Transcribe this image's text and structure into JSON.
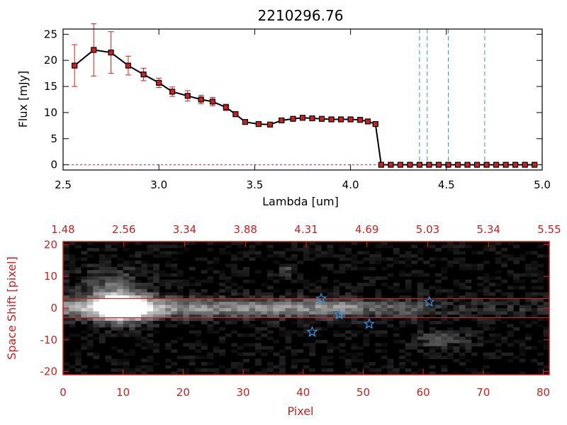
{
  "chart_data": [
    {
      "type": "line",
      "title": "2210296.76",
      "xlabel": "Lambda [um]",
      "ylabel": "Flux [mJy]",
      "xlim": [
        2.5,
        5.0
      ],
      "ylim": [
        -1,
        26
      ],
      "x_ticks": [
        "2.5",
        "3.0",
        "3.5",
        "4.0",
        "4.5",
        "5.0"
      ],
      "y_ticks": [
        "0",
        "5",
        "10",
        "15",
        "20",
        "25"
      ],
      "colors": {
        "line": "#000000",
        "marker": "#cc1f1f",
        "errorbar": "#d42020",
        "vline": "#3a8fd6",
        "zero": "#d42020"
      },
      "series": [
        {
          "x": [
            2.56,
            2.66,
            2.75,
            2.84,
            2.92,
            3.0,
            3.07,
            3.15,
            3.22,
            3.28,
            3.35,
            3.4,
            3.45,
            3.52,
            3.58,
            3.64,
            3.7,
            3.75,
            3.8,
            3.85,
            3.9,
            3.95,
            4.0,
            4.05,
            4.09,
            4.13,
            4.16,
            4.21,
            4.26,
            4.31,
            4.36,
            4.41,
            4.46,
            4.51,
            4.56,
            4.61,
            4.66,
            4.71,
            4.76,
            4.81,
            4.86,
            4.91,
            4.96
          ],
          "y": [
            19.0,
            22.0,
            21.5,
            19.0,
            17.3,
            15.7,
            14.0,
            13.2,
            12.5,
            12.1,
            11.0,
            9.7,
            8.2,
            7.8,
            7.7,
            8.5,
            8.8,
            9.0,
            8.9,
            8.8,
            8.7,
            8.7,
            8.7,
            8.6,
            8.3,
            7.8,
            0.0,
            0.0,
            0.0,
            0.0,
            0.0,
            0.0,
            0.0,
            0.0,
            0.0,
            0.0,
            0.0,
            0.0,
            0.0,
            0.0,
            0.0,
            0.0,
            0.0
          ],
          "yerr": [
            4.0,
            5.0,
            4.0,
            1.8,
            1.2,
            0.9,
            0.9,
            1.0,
            0.8,
            0.8,
            0.6,
            0.5,
            0.3,
            0.3,
            0.3,
            0.4,
            0.3,
            0.3,
            0.3,
            0.3,
            0.3,
            0.3,
            0.3,
            0.3,
            0.3,
            0.3,
            0,
            0,
            0,
            0,
            0,
            0,
            0,
            0,
            0,
            0,
            0,
            0,
            0,
            0,
            0,
            0,
            0
          ]
        }
      ],
      "vertical_lines": [
        4.36,
        4.4,
        4.51,
        4.7
      ],
      "grid": false
    },
    {
      "type": "heatmap",
      "xlabel": "Pixel",
      "ylabel": "Space Shift [pixel]",
      "xlim": [
        0,
        81
      ],
      "ylim": [
        -21,
        21
      ],
      "x_ticks": [
        "0",
        "10",
        "20",
        "30",
        "40",
        "50",
        "60",
        "70",
        "80"
      ],
      "y_ticks": [
        "-20",
        "-10",
        "0",
        "10",
        "20"
      ],
      "top_axis_ticks": [
        "1.48",
        "2.56",
        "3.34",
        "3.88",
        "4.31",
        "4.69",
        "5.03",
        "5.34",
        "5.55"
      ],
      "colormap": "grayscale",
      "colors": {
        "axes": "#cc2020",
        "markers": "#3a8fd6"
      },
      "horizontal_lines": [
        3,
        -3
      ],
      "star_markers": [
        {
          "x": 43,
          "y": 3
        },
        {
          "x": 46,
          "y": -2
        },
        {
          "x": 51,
          "y": -5
        },
        {
          "x": 61,
          "y": 2
        },
        {
          "x": 41.5,
          "y": -7.5
        }
      ],
      "grid": false
    }
  ]
}
